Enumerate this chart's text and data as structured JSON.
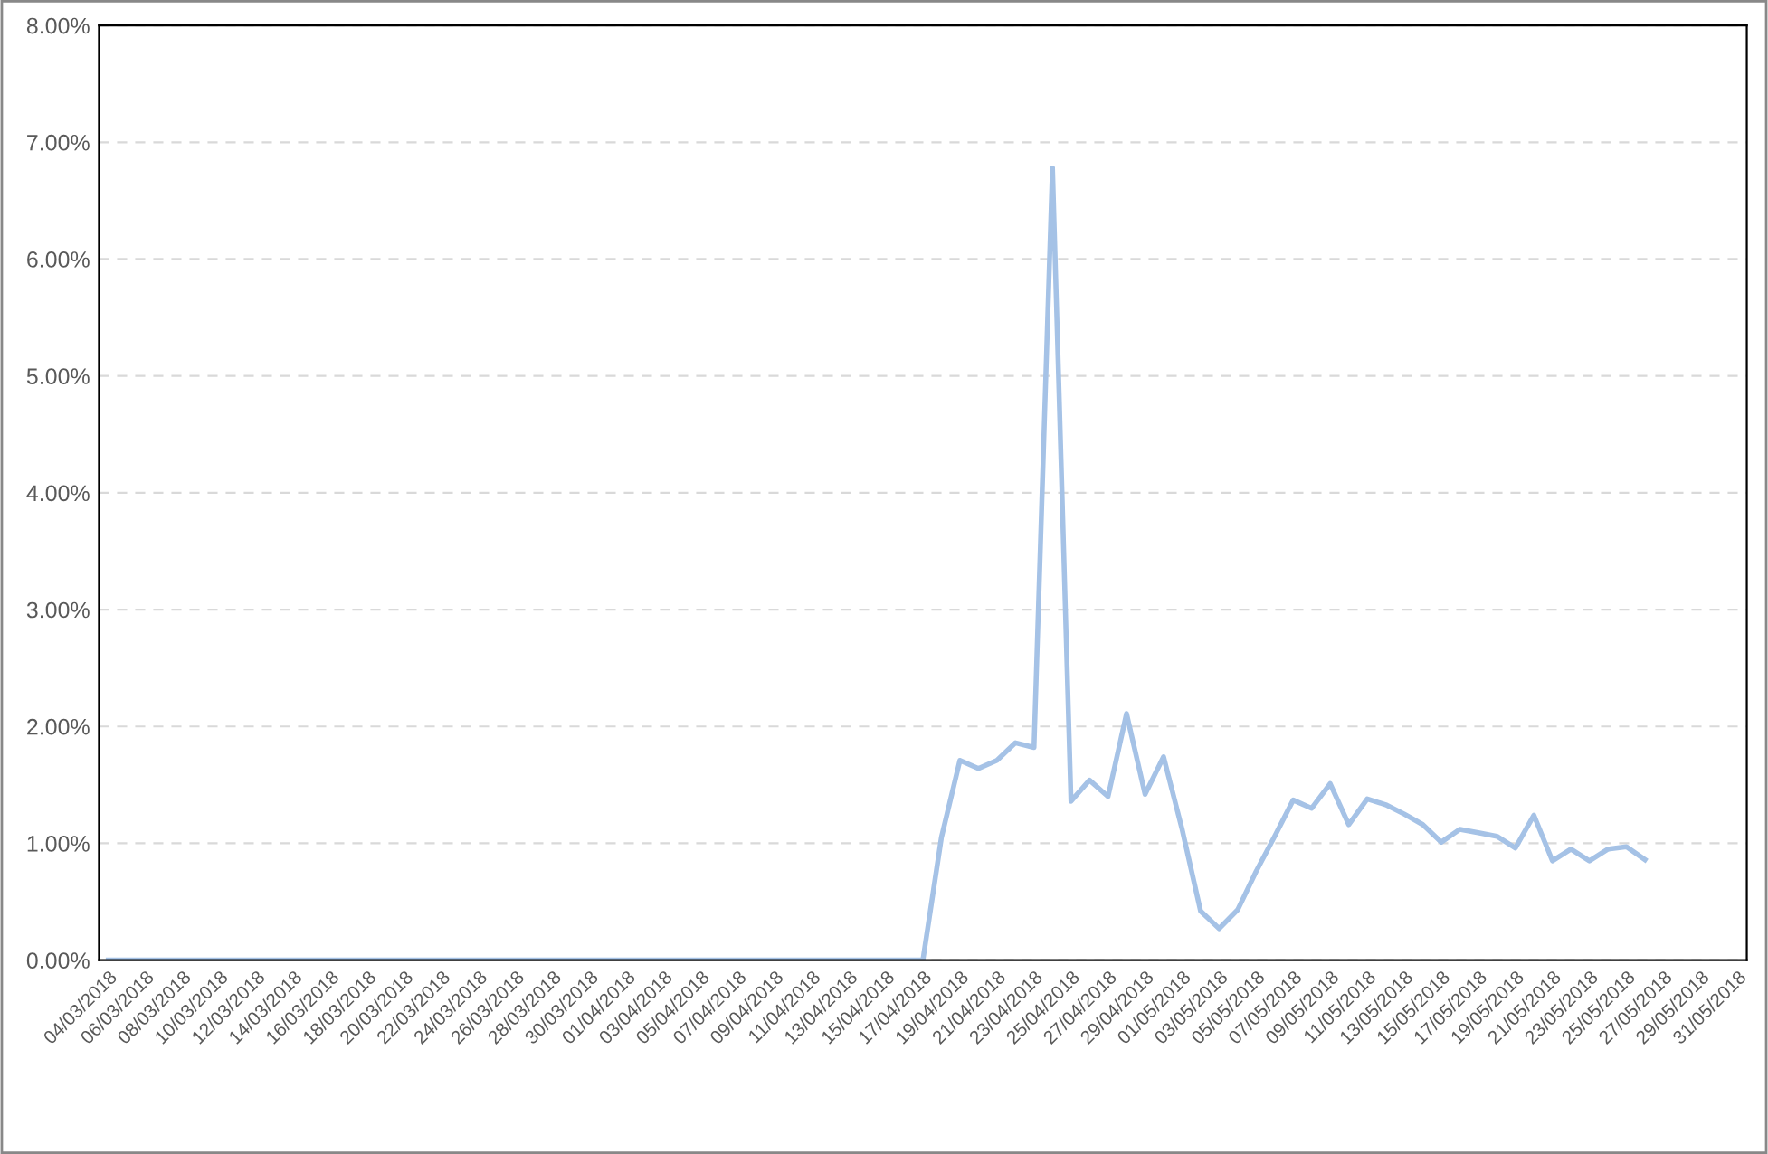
{
  "chart_data": {
    "type": "line",
    "categories": [
      "04/03/2018",
      null,
      "06/03/2018",
      null,
      "08/03/2018",
      null,
      "10/03/2018",
      null,
      "12/03/2018",
      null,
      "14/03/2018",
      null,
      "16/03/2018",
      null,
      "18/03/2018",
      null,
      "20/03/2018",
      null,
      "22/03/2018",
      null,
      "24/03/2018",
      null,
      "26/03/2018",
      null,
      "28/03/2018",
      null,
      "30/03/2018",
      null,
      "01/04/2018",
      null,
      "03/04/2018",
      null,
      "05/04/2018",
      null,
      "07/04/2018",
      null,
      "09/04/2018",
      null,
      "11/04/2018",
      null,
      "13/04/2018",
      null,
      "15/04/2018",
      null,
      "17/04/2018",
      null,
      "19/04/2018",
      null,
      "21/04/2018",
      null,
      "23/04/2018",
      null,
      "25/04/2018",
      null,
      "27/04/2018",
      null,
      "29/04/2018",
      null,
      "01/05/2018",
      null,
      "03/05/2018",
      null,
      "05/05/2018",
      null,
      "07/05/2018",
      null,
      "09/05/2018",
      null,
      "11/05/2018",
      null,
      "13/05/2018",
      null,
      "15/05/2018",
      null,
      "17/05/2018",
      null,
      "19/05/2018",
      null,
      "21/05/2018",
      null,
      "23/05/2018",
      null,
      "25/05/2018",
      null,
      "27/05/2018",
      null,
      "29/05/2018",
      null,
      "31/05/2018"
    ],
    "series": [
      {
        "color": "#a5c2e6",
        "values": [
          0,
          0,
          0,
          0,
          0,
          0,
          0,
          0,
          0,
          0,
          0,
          0,
          0,
          0,
          0,
          0,
          0,
          0,
          0,
          0,
          0,
          0,
          0,
          0,
          0,
          0,
          0,
          0,
          0,
          0,
          0,
          0,
          0,
          0,
          0,
          0,
          0,
          0,
          0,
          0,
          0,
          0,
          0,
          0,
          0,
          1.05,
          1.71,
          1.64,
          1.71,
          1.86,
          1.82,
          6.78,
          1.36,
          1.54,
          1.4,
          2.11,
          1.42,
          1.74,
          1.12,
          0.42,
          0.27,
          0.43,
          0.76,
          1.06,
          1.37,
          1.3,
          1.51,
          1.16,
          1.38,
          1.33,
          1.25,
          1.16,
          1.01,
          1.12,
          1.09,
          1.06,
          0.96,
          1.24,
          0.85,
          0.95,
          0.85,
          0.95,
          0.97,
          0.86,
          null,
          null,
          null,
          null,
          null
        ]
      }
    ],
    "ylim": [
      0,
      8
    ],
    "yticks": [
      {
        "value": 0,
        "label": "0.00%"
      },
      {
        "value": 1,
        "label": "1.00%"
      },
      {
        "value": 2,
        "label": "2.00%"
      },
      {
        "value": 3,
        "label": "3.00%"
      },
      {
        "value": 4,
        "label": "4.00%"
      },
      {
        "value": 5,
        "label": "5.00%"
      },
      {
        "value": 6,
        "label": "6.00%"
      },
      {
        "value": 7,
        "label": "7.00%"
      },
      {
        "value": 8,
        "label": "8.00%"
      }
    ],
    "grid": "y",
    "line_style": "solid",
    "marker": "none"
  }
}
